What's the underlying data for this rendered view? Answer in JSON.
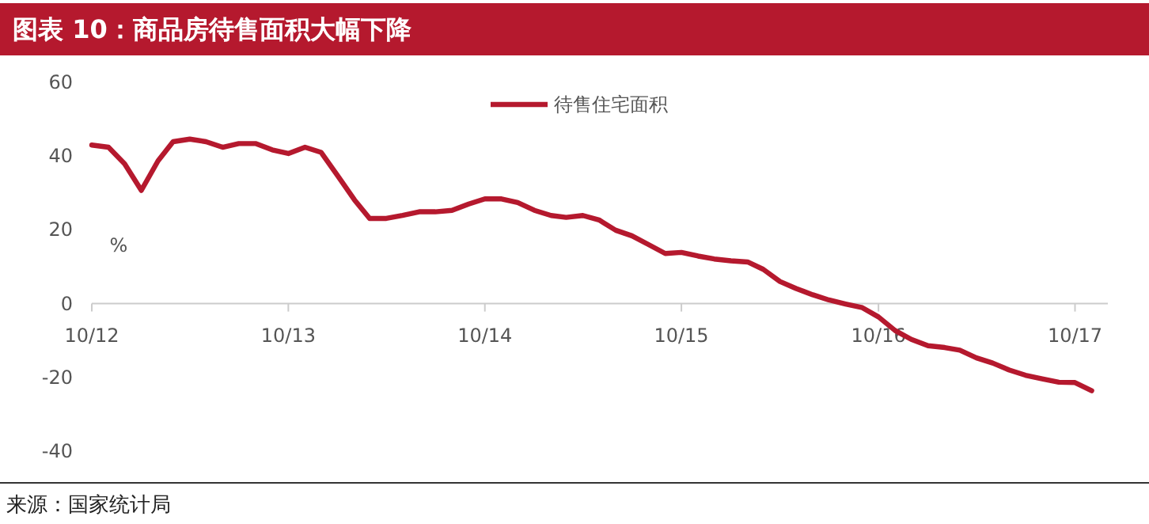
{
  "chart_data": {
    "type": "line",
    "title": "图表 10：商品房待售面积大幅下降",
    "ylabel": "%",
    "annotations": [
      "来源：国家统计局"
    ],
    "x": [
      "2012-10",
      "2012-11",
      "2012-12",
      "2013-01",
      "2013-02",
      "2013-03",
      "2013-04",
      "2013-05",
      "2013-06",
      "2013-07",
      "2013-08",
      "2013-09",
      "2013-10",
      "2013-11",
      "2013-12",
      "2014-01",
      "2014-02",
      "2014-03",
      "2014-04",
      "2014-05",
      "2014-06",
      "2014-07",
      "2014-08",
      "2014-09",
      "2014-10",
      "2014-11",
      "2014-12",
      "2015-01",
      "2015-02",
      "2015-03",
      "2015-04",
      "2015-05",
      "2015-06",
      "2015-07",
      "2015-08",
      "2015-09",
      "2015-10",
      "2015-11",
      "2015-12",
      "2016-01",
      "2016-02",
      "2016-03",
      "2016-04",
      "2016-05",
      "2016-06",
      "2016-07",
      "2016-08",
      "2016-09",
      "2016-10",
      "2016-11",
      "2016-12",
      "2017-01",
      "2017-02",
      "2017-03",
      "2017-04",
      "2017-05",
      "2017-06",
      "2017-07",
      "2017-08",
      "2017-09",
      "2017-10",
      "2017-11"
    ],
    "series": [
      {
        "name": "待售住宅面积",
        "color": "#b5192e",
        "values": [
          43,
          42.4,
          37.9,
          30.7,
          38.7,
          43.9,
          44.6,
          43.9,
          42.4,
          43.4,
          43.4,
          41.7,
          40.7,
          42.4,
          41,
          34.6,
          28.1,
          23.1,
          23.1,
          23.9,
          24.9,
          24.9,
          25.3,
          27,
          28.4,
          28.4,
          27.4,
          25.3,
          23.9,
          23.4,
          23.9,
          22.7,
          19.9,
          18.4,
          16,
          13.6,
          13.9,
          12.9,
          12.1,
          11.6,
          11.3,
          9.3,
          6,
          4.1,
          2.4,
          1,
          -0.1,
          -1.1,
          -3.6,
          -7.3,
          -9.7,
          -11.4,
          -11.9,
          -12.6,
          -14.7,
          -16.1,
          -18,
          -19.4,
          -20.4,
          -21.3,
          -21.4,
          -23.6
        ]
      }
    ],
    "xlim": [
      "2012-10",
      "2017-12"
    ],
    "xticks": [
      {
        "value": "2012-10",
        "label": "10/12"
      },
      {
        "value": "2013-10",
        "label": "10/13"
      },
      {
        "value": "2014-10",
        "label": "10/14"
      },
      {
        "value": "2015-10",
        "label": "10/15"
      },
      {
        "value": "2016-10",
        "label": "10/16"
      },
      {
        "value": "2017-10",
        "label": "10/17"
      }
    ],
    "ylim": [
      -40,
      60
    ],
    "yticks": [
      -40,
      -20,
      0,
      20,
      40,
      60
    ],
    "grid": false,
    "legend": "top",
    "marker": "none",
    "line_style": "solid"
  }
}
